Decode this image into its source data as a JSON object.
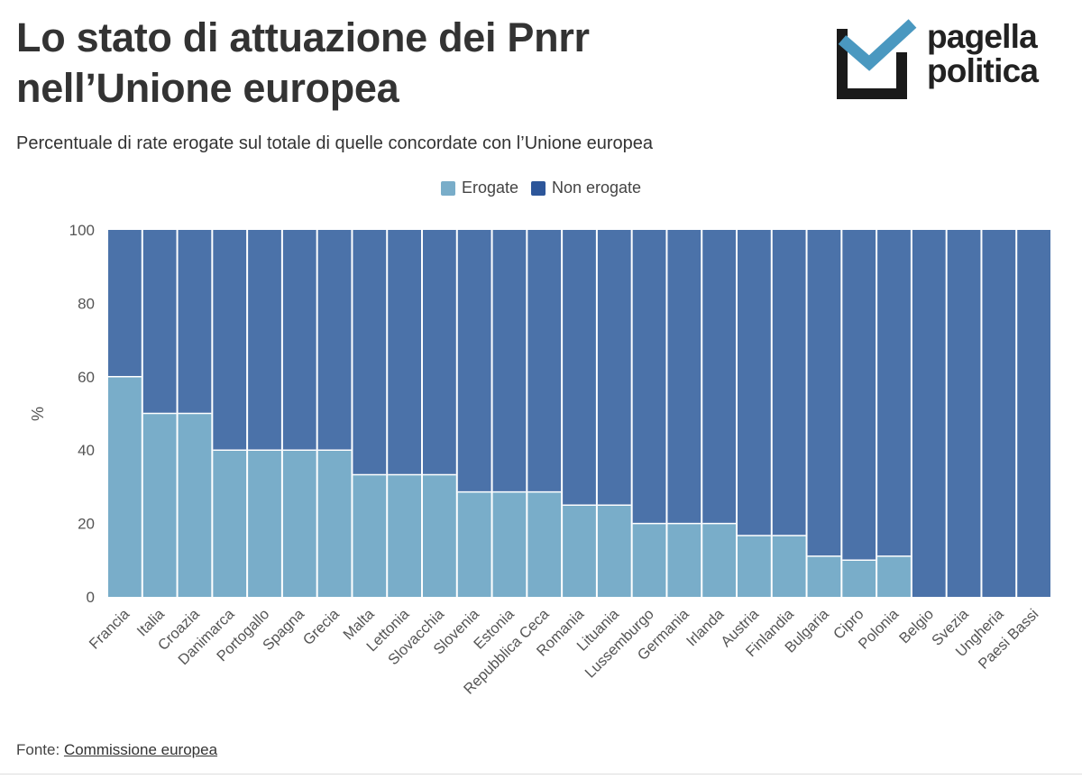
{
  "header": {
    "title": "Lo stato di attuazione dei Pnrr nell’Unione europea",
    "subtitle": "Percentuale di rate erogate sul totale di quelle concordate con l’Unione europea"
  },
  "logo": {
    "line1": "pagella",
    "line2": "politica",
    "icon": "checkbox-check-icon"
  },
  "footer": {
    "source_label": "Fonte:",
    "source_link": "Commissione europea"
  },
  "colors": {
    "erogate": "#79adc9",
    "non_erogate": "#4b72a9",
    "title": "#333333"
  },
  "chart_data": {
    "type": "bar",
    "stacked": true,
    "title": "Lo stato di attuazione dei Pnrr nell’Unione europea",
    "xlabel": "",
    "ylabel": "%",
    "ylim": [
      0,
      100
    ],
    "yticks": [
      0,
      20,
      40,
      60,
      80,
      100
    ],
    "grid": false,
    "legend_position": "top-center",
    "categories": [
      "Francia",
      "Italia",
      "Croazia",
      "Danimarca",
      "Portogallo",
      "Spagna",
      "Grecia",
      "Malta",
      "Lettonia",
      "Slovacchia",
      "Slovenia",
      "Estonia",
      "Repubblica Ceca",
      "Romania",
      "Lituania",
      "Lussemburgo",
      "Germania",
      "Irlanda",
      "Austria",
      "Finlandia",
      "Bulgaria",
      "Cipro",
      "Polonia",
      "Belgio",
      "Svezia",
      "Ungheria",
      "Paesi Bassi"
    ],
    "series": [
      {
        "name": "Erogate",
        "values": [
          60,
          50,
          50,
          40,
          40,
          40,
          40,
          33.3,
          33.3,
          33.3,
          28.6,
          28.6,
          28.6,
          25,
          25,
          20,
          20,
          20,
          16.7,
          16.7,
          11.1,
          10,
          11.1,
          0,
          0,
          0,
          0
        ]
      },
      {
        "name": "Non erogate",
        "values": [
          40,
          50,
          50,
          60,
          60,
          60,
          60,
          66.7,
          66.7,
          66.7,
          71.4,
          71.4,
          71.4,
          75,
          75,
          80,
          80,
          80,
          83.3,
          83.3,
          88.9,
          90,
          88.9,
          100,
          100,
          100,
          100
        ]
      }
    ]
  }
}
